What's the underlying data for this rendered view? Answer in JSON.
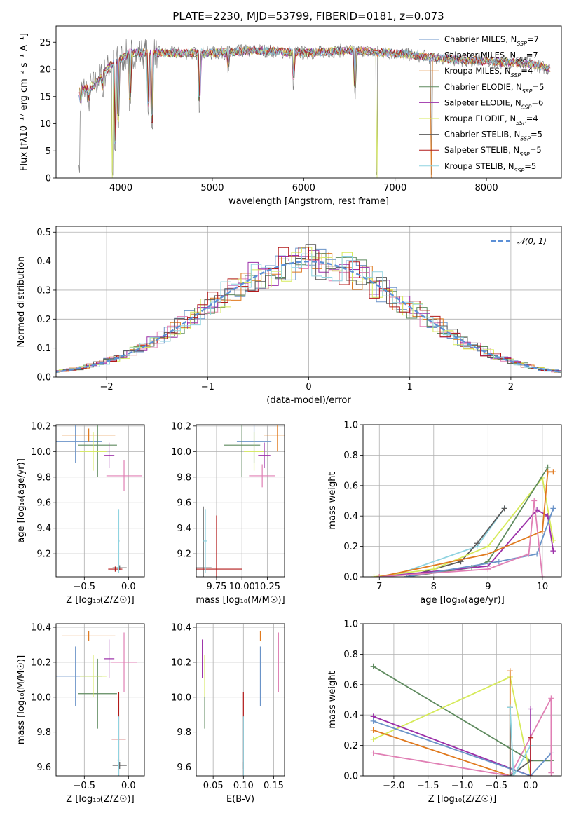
{
  "title": "PLATE=2230, MJD=53799, FIBERID=0181, z=0.073",
  "colors": {
    "Chabrier MILES": "#6a93c8",
    "Salpeter MILES": "#e07fb4",
    "Kroupa MILES": "#e07a1f",
    "Chabrier ELODIE": "#5e8a5e",
    "Salpeter ELODIE": "#9b2fa8",
    "Kroupa ELODIE": "#d6ea5a",
    "Chabrier STELIB": "#5a5a5a",
    "Salpeter STELIB": "#b21a1a",
    "Kroupa STELIB": "#8fd3e0"
  },
  "chart_data": [
    {
      "id": "spectrum",
      "type": "line",
      "title": "PLATE=2230, MJD=53799, FIBERID=0181, z=0.073",
      "xlabel": "wavelength [Angstrom, rest frame]",
      "ylabel": "Flux [f$_\\lambda$10$^{-17}$ erg cm$^{-2}$ s$^{-1}$ A$^{-1}$]",
      "ylabel_display": "Flux [fλ10⁻¹⁷ erg cm⁻² s⁻¹ A⁻¹]",
      "xlim": [
        3290,
        8820
      ],
      "ylim": [
        0,
        28
      ],
      "xticks": [
        4000,
        5000,
        6000,
        7000,
        8000
      ],
      "yticks": [
        0,
        5,
        10,
        15,
        20,
        25
      ],
      "legend_position": "top-right",
      "legend": [
        "Chabrier MILES, N_SSP=7",
        "Salpeter MILES, N_SSP=7",
        "Kroupa MILES, N_SSP=4",
        "Chabrier ELODIE, N_SSP=5",
        "Salpeter ELODIE, N_SSP=6",
        "Kroupa ELODIE, N_SSP=4",
        "Chabrier STELIB, N_SSP=5",
        "Salpeter STELIB, N_SSP=5",
        "Kroupa STELIB, N_SSP=5"
      ],
      "legend_display": [
        "Chabrier MILES, N",
        "Salpeter MILES, N",
        "Kroupa MILES, N",
        "Chabrier ELODIE, N",
        "Salpeter ELODIE, N",
        "Kroupa ELODIE, N",
        "Chabrier STELIB, N",
        "Salpeter STELIB, N",
        "Kroupa STELIB, N"
      ],
      "legend_nssp": [
        "=7",
        "=7",
        "=4",
        "=5",
        "=6",
        "=4",
        "=5",
        "=5",
        "=5"
      ],
      "legend_sub": "SSP",
      "continuum": [
        [
          3540,
          16
        ],
        [
          3700,
          17
        ],
        [
          3900,
          21
        ],
        [
          4100,
          23
        ],
        [
          4300,
          23
        ],
        [
          4600,
          23
        ],
        [
          5000,
          23
        ],
        [
          5500,
          23.5
        ],
        [
          6000,
          23
        ],
        [
          6500,
          23.5
        ],
        [
          7000,
          23
        ],
        [
          7500,
          22
        ],
        [
          8000,
          21.5
        ],
        [
          8500,
          21
        ],
        [
          8700,
          20
        ]
      ],
      "dips": [
        [
          3540,
          0.5
        ],
        [
          3560,
          11
        ],
        [
          3650,
          12
        ],
        [
          3800,
          14
        ],
        [
          3905,
          0
        ],
        [
          3935,
          4
        ],
        [
          3970,
          8
        ],
        [
          4100,
          12
        ],
        [
          4300,
          11
        ],
        [
          4340,
          8
        ],
        [
          4860,
          12
        ],
        [
          5175,
          18
        ],
        [
          5890,
          16
        ],
        [
          6560,
          14
        ],
        [
          6800,
          0
        ],
        [
          7400,
          0
        ]
      ]
    },
    {
      "id": "residuals",
      "type": "step",
      "xlabel": "(data-model)/error",
      "ylabel": "Normed distribution",
      "xlim": [
        -2.5,
        2.5
      ],
      "ylim": [
        0,
        0.52
      ],
      "xticks": [
        -2,
        -1,
        0,
        1,
        2
      ],
      "xtick_labels": [
        "−2",
        "−1",
        "0",
        "1",
        "2"
      ],
      "yticks": [
        0.0,
        0.1,
        0.2,
        0.3,
        0.4,
        0.5
      ],
      "ytick_labels": [
        "0.0",
        "0.1",
        "0.2",
        "0.3",
        "0.4",
        "0.5"
      ],
      "legend": [
        "𝒩(0, 1)"
      ],
      "legend_position": "top-right",
      "model": "gaussian mean 0 sigma 1, dashed",
      "bin_width": 0.1
    },
    {
      "id": "age_vs_Z",
      "type": "errorbar",
      "xlabel": "Z [log₁₀(Z/Z☉)]",
      "ylabel": "age  [log₁₀(age/yr)]",
      "xlim": [
        -0.82,
        0.18
      ],
      "ylim": [
        9.02,
        10.21
      ],
      "xticks": [
        -0.5,
        0.0
      ],
      "xtick_labels": [
        "−0.5",
        "0.0"
      ],
      "yticks": [
        9.2,
        9.4,
        9.6,
        9.8,
        10.0,
        10.2
      ],
      "ytick_labels": [
        "9.2",
        "9.4",
        "9.6",
        "9.8",
        "10.0",
        "10.2"
      ],
      "points": [
        {
          "model": "Chabrier MILES",
          "x": -0.6,
          "xe": 0.3,
          "y": 10.08,
          "ye": 0.17
        },
        {
          "model": "Salpeter MILES",
          "x": -0.05,
          "xe": 0.2,
          "y": 9.81,
          "ye": 0.12
        },
        {
          "model": "Kroupa MILES",
          "x": -0.45,
          "xe": 0.3,
          "y": 10.13,
          "ye": 0.05
        },
        {
          "model": "Chabrier ELODIE",
          "x": -0.35,
          "xe": 0.22,
          "y": 10.05,
          "ye": 0.25
        },
        {
          "model": "Salpeter ELODIE",
          "x": -0.22,
          "xe": 0.06,
          "y": 9.97,
          "ye": 0.1
        },
        {
          "model": "Kroupa ELODIE",
          "x": -0.4,
          "xe": 0.15,
          "y": 10.0,
          "ye": 0.15
        },
        {
          "model": "Chabrier STELIB",
          "x": -0.1,
          "xe": 0.08,
          "y": 9.09,
          "ye": 0.02
        },
        {
          "model": "Salpeter STELIB",
          "x": -0.15,
          "xe": 0.08,
          "y": 9.08,
          "ye": 0.02
        },
        {
          "model": "Kroupa STELIB",
          "x": -0.11,
          "xe": 0.01,
          "y": 9.3,
          "ye": 0.25
        }
      ]
    },
    {
      "id": "age_vs_mass",
      "type": "errorbar",
      "xlabel": "mass [log₁₀(M/M☉)]",
      "xlim": [
        9.55,
        10.42
      ],
      "ylim": [
        9.02,
        10.21
      ],
      "xticks": [
        9.75,
        10.0,
        10.25
      ],
      "xtick_labels": [
        "9.75",
        "10.00",
        "10.25"
      ],
      "yticks": [
        9.2,
        9.4,
        9.6,
        9.8,
        10.0,
        10.2
      ],
      "ytick_labels": [
        "9.2",
        "9.4",
        "9.6",
        "9.8",
        "10.0",
        "10.2"
      ],
      "points": [
        {
          "model": "Chabrier MILES",
          "x": 10.12,
          "xe": 0.17,
          "y": 10.08,
          "ye": 0.17
        },
        {
          "model": "Salpeter MILES",
          "x": 10.2,
          "xe": 0.13,
          "y": 9.81,
          "ye": 0.09
        },
        {
          "model": "Kroupa MILES",
          "x": 10.35,
          "xe": 0.13,
          "y": 10.13,
          "ye": 0.13
        },
        {
          "model": "Chabrier ELODIE",
          "x": 10.0,
          "xe": 0.18,
          "y": 10.05,
          "ye": 0.25
        },
        {
          "model": "Salpeter ELODIE",
          "x": 10.22,
          "xe": 0.06,
          "y": 9.97,
          "ye": 0.1
        },
        {
          "model": "Kroupa ELODIE",
          "x": 10.12,
          "xe": 0.1,
          "y": 10.0,
          "ye": 0.15
        },
        {
          "model": "Chabrier STELIB",
          "x": 9.62,
          "xe": 0.08,
          "y": 9.09,
          "ye": 0.48
        },
        {
          "model": "Salpeter STELIB",
          "x": 9.75,
          "xe": 0.25,
          "y": 9.08,
          "ye": 0.42
        },
        {
          "model": "Kroupa STELIB",
          "x": 9.64,
          "xe": 0.02,
          "y": 9.3,
          "ye": 0.25
        }
      ]
    },
    {
      "id": "weight_vs_age",
      "type": "line",
      "xlabel": "age  [log₁₀(age/yr)]",
      "ylabel": "mass weight",
      "xlim": [
        6.7,
        10.35
      ],
      "ylim": [
        0,
        1
      ],
      "xticks": [
        7,
        8,
        9,
        10
      ],
      "xtick_labels": [
        "7",
        "8",
        "9",
        "10"
      ],
      "yticks": [
        0.0,
        0.2,
        0.4,
        0.6,
        0.8,
        1.0
      ],
      "ytick_labels": [
        "0.0",
        "0.2",
        "0.4",
        "0.6",
        "0.8",
        "1.0"
      ],
      "series": [
        {
          "model": "Kroupa STELIB",
          "x": [
            7.2,
            8.8,
            9.3
          ],
          "y": [
            0.0,
            0.2,
            0.45
          ]
        },
        {
          "model": "Chabrier STELIB",
          "x": [
            7.5,
            8.5,
            8.8,
            9.3
          ],
          "y": [
            0.0,
            0.1,
            0.22,
            0.45
          ]
        },
        {
          "model": "Kroupa ELODIE",
          "x": [
            6.9,
            8.0,
            9.0,
            10.0,
            10.2
          ],
          "y": [
            0.0,
            0.05,
            0.2,
            0.65,
            0.24
          ]
        },
        {
          "model": "Chabrier ELODIE",
          "x": [
            7.5,
            8.7,
            9.0,
            10.1
          ],
          "y": [
            0.0,
            0.06,
            0.1,
            0.72
          ]
        },
        {
          "model": "Salpeter ELODIE",
          "x": [
            7.0,
            9.0,
            9.9,
            10.1,
            10.2
          ],
          "y": [
            0.0,
            0.07,
            0.44,
            0.4,
            0.17
          ]
        },
        {
          "model": "Kroupa MILES",
          "x": [
            7.0,
            9.0,
            10.0,
            10.1,
            10.2
          ],
          "y": [
            0.0,
            0.15,
            0.3,
            0.69,
            0.69
          ]
        },
        {
          "model": "Chabrier MILES",
          "x": [
            7.5,
            9.2,
            9.9,
            10.2
          ],
          "y": [
            0.0,
            0.1,
            0.15,
            0.45
          ]
        },
        {
          "model": "Salpeter MILES",
          "x": [
            7.0,
            9.0,
            9.75,
            9.85,
            10.0
          ],
          "y": [
            0.0,
            0.05,
            0.15,
            0.5,
            0.0
          ]
        }
      ]
    },
    {
      "id": "mass_vs_Z",
      "type": "errorbar",
      "xlabel": "Z [log₁₀(Z/Z☉)]",
      "ylabel": "mass [log₁₀(M/M☉)]",
      "xlim": [
        -0.82,
        0.18
      ],
      "ylim": [
        9.55,
        10.42
      ],
      "xticks": [
        -0.5,
        0.0
      ],
      "xtick_labels": [
        "−0.5",
        "0.0"
      ],
      "yticks": [
        9.6,
        9.8,
        10.0,
        10.2,
        10.4
      ],
      "ytick_labels": [
        "9.6",
        "9.8",
        "10.0",
        "10.2",
        "10.4"
      ],
      "points": [
        {
          "model": "Chabrier MILES",
          "x": -0.6,
          "xe": 0.3,
          "y": 10.12,
          "ye": 0.17
        },
        {
          "model": "Salpeter MILES",
          "x": -0.05,
          "xe": 0.15,
          "y": 10.2,
          "ye": 0.17
        },
        {
          "model": "Kroupa MILES",
          "x": -0.45,
          "xe": 0.3,
          "y": 10.35,
          "ye": 0.03
        },
        {
          "model": "Chabrier ELODIE",
          "x": -0.35,
          "xe": 0.22,
          "y": 10.02,
          "ye": 0.2
        },
        {
          "model": "Salpeter ELODIE",
          "x": -0.22,
          "xe": 0.06,
          "y": 10.22,
          "ye": 0.11
        },
        {
          "model": "Kroupa ELODIE",
          "x": -0.4,
          "xe": 0.15,
          "y": 10.12,
          "ye": 0.12
        },
        {
          "model": "Chabrier STELIB",
          "x": -0.1,
          "xe": 0.08,
          "y": 9.61,
          "ye": 0.02
        },
        {
          "model": "Salpeter STELIB",
          "x": -0.11,
          "xe": 0.08,
          "y": 9.76,
          "ye": 0.27
        },
        {
          "model": "Kroupa STELIB",
          "x": -0.11,
          "xe": 0.02,
          "y": 9.64,
          "ye": 0.25
        }
      ]
    },
    {
      "id": "mass_vs_EBV",
      "type": "errorbar",
      "xlabel": "E(B-V)",
      "xlim": [
        0.022,
        0.168
      ],
      "ylim": [
        9.55,
        10.42
      ],
      "xticks": [
        0.05,
        0.1,
        0.15
      ],
      "xtick_labels": [
        "0.05",
        "0.10",
        "0.15"
      ],
      "yticks": [
        9.6,
        9.8,
        10.0,
        10.2,
        10.4
      ],
      "ytick_labels": [
        "9.6",
        "9.8",
        "10.0",
        "10.2",
        "10.4"
      ],
      "points": [
        {
          "model": "Chabrier MILES",
          "x": 0.128,
          "xe": 0.0,
          "y": 10.12,
          "ye": 0.17
        },
        {
          "model": "Salpeter MILES",
          "x": 0.158,
          "xe": 0.0,
          "y": 10.2,
          "ye": 0.17
        },
        {
          "model": "Kroupa MILES",
          "x": 0.128,
          "xe": 0.0,
          "y": 10.35,
          "ye": 0.03
        },
        {
          "model": "Chabrier ELODIE",
          "x": 0.036,
          "xe": 0.0,
          "y": 10.02,
          "ye": 0.2
        },
        {
          "model": "Salpeter ELODIE",
          "x": 0.032,
          "xe": 0.0,
          "y": 10.22,
          "ye": 0.11
        },
        {
          "model": "Kroupa ELODIE",
          "x": 0.036,
          "xe": 0.0,
          "y": 10.12,
          "ye": 0.12
        },
        {
          "model": "Chabrier STELIB",
          "x": 0.1,
          "xe": 0.0,
          "y": 9.61,
          "ye": 0.02
        },
        {
          "model": "Salpeter STELIB",
          "x": 0.1,
          "xe": 0.0,
          "y": 9.76,
          "ye": 0.27
        },
        {
          "model": "Kroupa STELIB",
          "x": 0.1,
          "xe": 0.0,
          "y": 9.64,
          "ye": 0.25
        }
      ]
    },
    {
      "id": "weight_vs_Z",
      "type": "line",
      "xlabel": "Z [log₁₀(Z/Z☉)]",
      "ylabel": "mass weight",
      "xlim": [
        -2.45,
        0.45
      ],
      "ylim": [
        0,
        1
      ],
      "xticks": [
        -2.0,
        -1.5,
        -1.0,
        -0.5,
        0.0
      ],
      "xtick_labels": [
        "−2.0",
        "−1.5",
        "−1.0",
        "−0.5",
        "0.0"
      ],
      "yticks": [
        0.0,
        0.2,
        0.4,
        0.6,
        0.8,
        1.0
      ],
      "ytick_labels": [
        "0.0",
        "0.2",
        "0.4",
        "0.6",
        "0.8",
        "1.0"
      ],
      "series": [
        {
          "model": "Chabrier ELODIE",
          "x": [
            -2.3,
            0.0,
            0.3
          ],
          "y": [
            0.72,
            0.1,
            0.1
          ]
        },
        {
          "model": "Kroupa ELODIE",
          "x": [
            -2.3,
            -0.3,
            0.0
          ],
          "y": [
            0.24,
            0.65,
            0.0
          ]
        },
        {
          "model": "Salpeter ELODIE",
          "x": [
            -2.3,
            0.0,
            0.0
          ],
          "y": [
            0.39,
            0.0,
            0.44
          ]
        },
        {
          "model": "Chabrier MILES",
          "x": [
            -2.3,
            0.0,
            0.3
          ],
          "y": [
            0.36,
            0.0,
            0.15
          ]
        },
        {
          "model": "Kroupa MILES",
          "x": [
            -2.3,
            -0.3,
            -0.3
          ],
          "y": [
            0.3,
            0.0,
            0.69
          ]
        },
        {
          "model": "Salpeter MILES",
          "x": [
            -2.3,
            -0.3,
            0.3,
            0.3
          ],
          "y": [
            0.15,
            0.0,
            0.51,
            0.02
          ]
        },
        {
          "model": "Chabrier STELIB",
          "x": [
            -0.3,
            -0.3,
            0.0
          ],
          "y": [
            0.45,
            0.0,
            0.1
          ]
        },
        {
          "model": "Kroupa STELIB",
          "x": [
            -0.3,
            -0.25,
            0.0
          ],
          "y": [
            0.45,
            0.0,
            0.2
          ]
        },
        {
          "model": "Salpeter STELIB",
          "x": [
            0.0,
            0.0
          ],
          "y": [
            0.0,
            0.25
          ]
        }
      ]
    }
  ]
}
